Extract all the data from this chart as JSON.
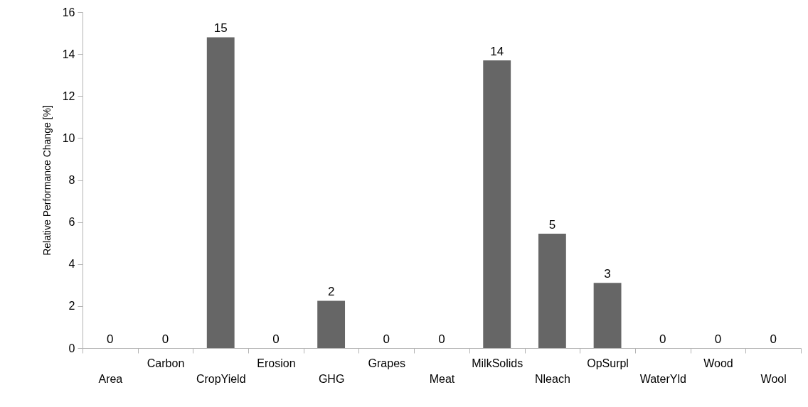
{
  "chart_data": {
    "type": "bar",
    "ylabel": "Relative Performance Change [%]",
    "categories": [
      "Area",
      "Carbon",
      "CropYield",
      "Erosion",
      "GHG",
      "Grapes",
      "Meat",
      "MilkSolids",
      "Nleach",
      "OpSurpl",
      "WaterYld",
      "Wood",
      "Wool"
    ],
    "values": [
      0,
      0,
      14.8,
      0,
      2.25,
      0,
      0,
      13.7,
      5.45,
      3.1,
      0,
      0,
      0
    ],
    "value_labels": [
      "0",
      "0",
      "15",
      "0",
      "2",
      "0",
      "0",
      "14",
      "5",
      "3",
      "0",
      "0",
      "0"
    ],
    "color": "#666666",
    "ylim": [
      0,
      16
    ],
    "yticks": [
      0,
      2,
      4,
      6,
      8,
      10,
      12,
      14,
      16
    ],
    "grid": false
  }
}
